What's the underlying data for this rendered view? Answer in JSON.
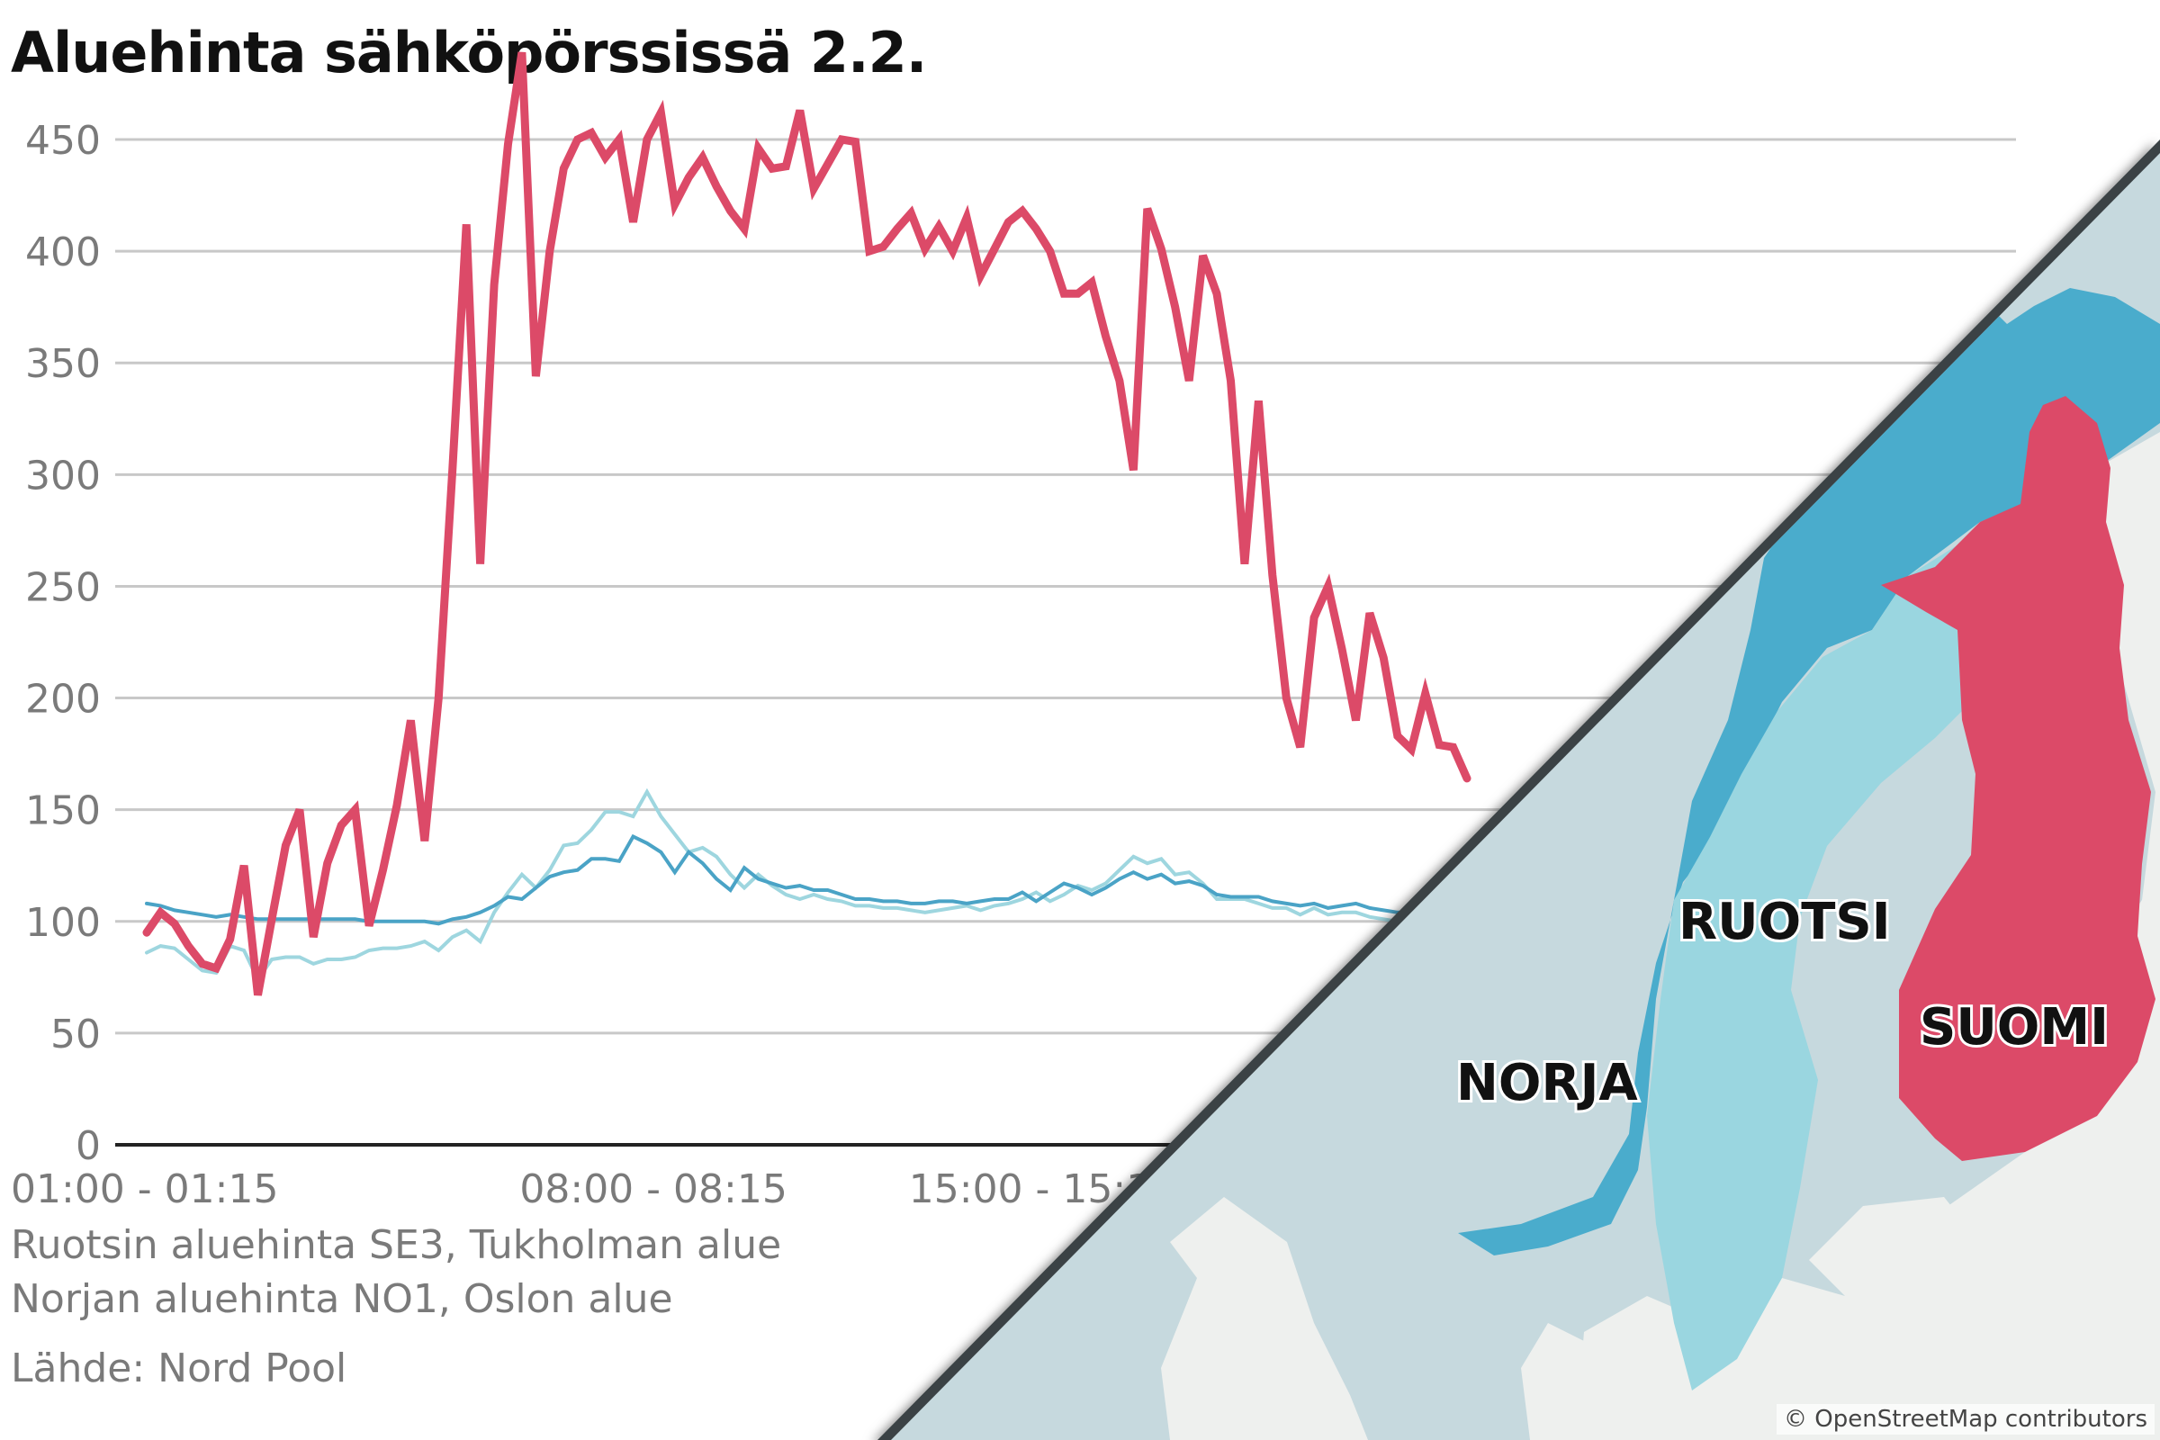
{
  "title": "Aluehinta sähköpörssissä 2.2.",
  "legend": [
    {
      "text": "Ruotsin aluehinta SE3, Tukholman alue",
      "color": "#9ed6df"
    },
    {
      "text": "Norjan aluehinta NO1, Oslon alue",
      "color": "#4aa3c6"
    }
  ],
  "source": "Lähde: Nord Pool",
  "map": {
    "labels": {
      "norway": "NORJA",
      "sweden": "RUOTSI",
      "finland": "SUOMI"
    },
    "attribution": "© OpenStreetMap contributors",
    "colors": {
      "sea": "#c6d9de",
      "land": "#eef0ee",
      "norway": "#4aaccc",
      "sweden": "#9ad6e0",
      "finland": "#dc4a68",
      "divider": "#3a4345"
    }
  },
  "chart_data": {
    "type": "line",
    "title": "Aluehinta sähköpörssissä 2.2.",
    "xlabel": "",
    "ylabel": "",
    "ylim": [
      0,
      480
    ],
    "yticks": [
      0,
      50,
      100,
      150,
      200,
      250,
      300,
      350,
      400,
      450
    ],
    "grid": true,
    "x_tick_labels": [
      {
        "label": "01:00 - 01:15",
        "index": 0
      },
      {
        "label": "08:00 - 08:15",
        "index": 28
      },
      {
        "label": "15:00 - 15:15",
        "index": 56
      }
    ],
    "series": [
      {
        "key": "finland",
        "color": "#dc4a68",
        "values": [
          95,
          104,
          99,
          89,
          81,
          79,
          92,
          125,
          67,
          101,
          134,
          150,
          93,
          126,
          143,
          150,
          98,
          123,
          152,
          190,
          136,
          200,
          302,
          412,
          260,
          385,
          448,
          489,
          344,
          400,
          437,
          450,
          453,
          442,
          450,
          413,
          450,
          462,
          421,
          433,
          442,
          429,
          418,
          410,
          446,
          437,
          438,
          463,
          428,
          439,
          450,
          449,
          400,
          402,
          410,
          417,
          401,
          411,
          400,
          415,
          389,
          401,
          413,
          418,
          410,
          400,
          381,
          381,
          386,
          362,
          342,
          302,
          419,
          401,
          375,
          342,
          398,
          381,
          342,
          260,
          333,
          255,
          200,
          178,
          236,
          250,
          222,
          190,
          238,
          218,
          183,
          177,
          202,
          179,
          178,
          164
        ]
      },
      {
        "key": "sweden",
        "color": "#9ed6df",
        "values": [
          86,
          89,
          88,
          83,
          78,
          77,
          89,
          87,
          74,
          83,
          84,
          84,
          81,
          83,
          83,
          84,
          87,
          88,
          88,
          89,
          91,
          87,
          93,
          96,
          91,
          104,
          113,
          121,
          115,
          123,
          134,
          135,
          141,
          149,
          149,
          147,
          158,
          147,
          139,
          131,
          133,
          129,
          121,
          115,
          121,
          116,
          112,
          110,
          112,
          110,
          109,
          107,
          107,
          106,
          106,
          105,
          104,
          105,
          106,
          107,
          105,
          107,
          108,
          110,
          113,
          109,
          112,
          116,
          114,
          117,
          123,
          129,
          126,
          128,
          121,
          122,
          117,
          110,
          110,
          110,
          108,
          106,
          106,
          103,
          106,
          103,
          104,
          104,
          102,
          101,
          100,
          99,
          100,
          99,
          100,
          100
        ]
      },
      {
        "key": "norway",
        "color": "#4aa3c6",
        "values": [
          108,
          107,
          105,
          104,
          103,
          102,
          103,
          102,
          101,
          101,
          101,
          101,
          101,
          101,
          101,
          101,
          100,
          100,
          100,
          100,
          100,
          99,
          101,
          102,
          104,
          107,
          111,
          110,
          115,
          120,
          122,
          123,
          128,
          128,
          127,
          138,
          135,
          131,
          122,
          131,
          126,
          119,
          114,
          124,
          119,
          117,
          115,
          116,
          114,
          114,
          112,
          110,
          110,
          109,
          109,
          108,
          108,
          109,
          109,
          108,
          109,
          110,
          110,
          113,
          109,
          113,
          117,
          115,
          112,
          115,
          119,
          122,
          119,
          121,
          117,
          118,
          116,
          112,
          111,
          111,
          111,
          109,
          108,
          107,
          108,
          106,
          107,
          108,
          106,
          105,
          104,
          104,
          103,
          103,
          104,
          103
        ]
      }
    ]
  }
}
